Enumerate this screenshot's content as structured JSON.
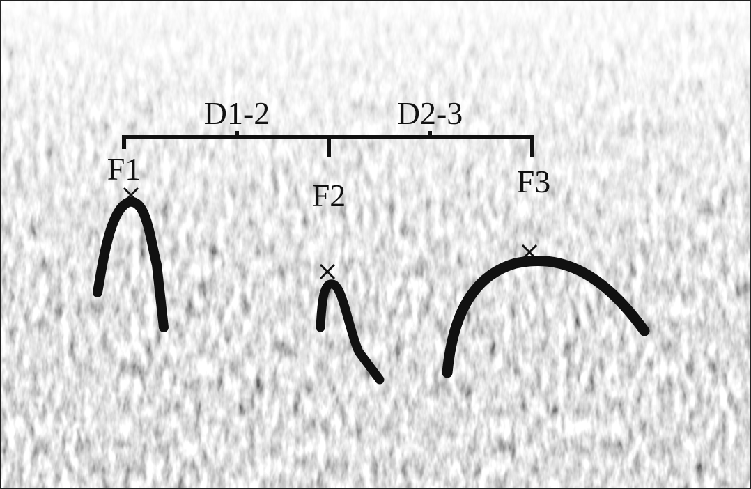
{
  "intervals": [
    "D1-2",
    "D2-3"
  ],
  "features": [
    "F1",
    "F2",
    "F3"
  ]
}
